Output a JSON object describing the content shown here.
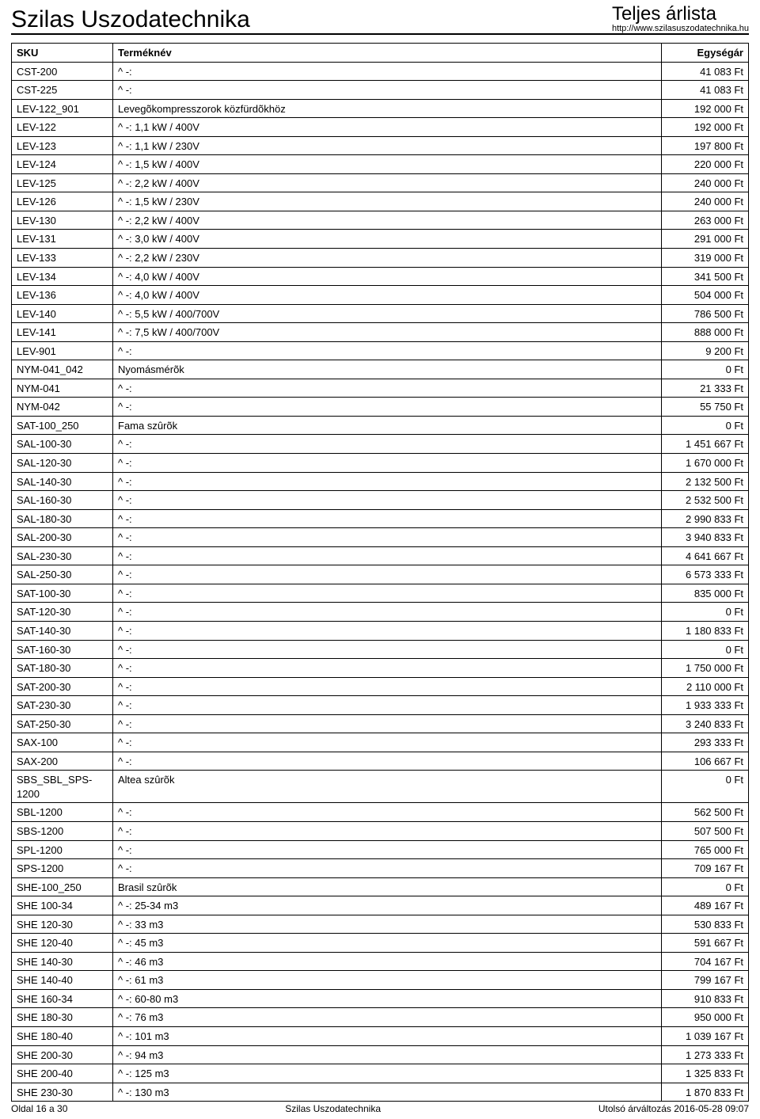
{
  "header": {
    "company": "Szilas Uszodatechnika",
    "pricelist_title": "Teljes árlista",
    "site_url": "http://www.szilasuszodatechnika.hu"
  },
  "columns": {
    "sku": "SKU",
    "name": "Terméknév",
    "price": "Egységár"
  },
  "rows": [
    {
      "sku": "CST-200",
      "name": "^ -:",
      "price": "41 083 Ft"
    },
    {
      "sku": "CST-225",
      "name": "^ -:",
      "price": "41 083 Ft"
    },
    {
      "sku": "LEV-122_901",
      "name": "Levegõkompresszorok közfürdõkhöz",
      "price": "192 000 Ft"
    },
    {
      "sku": "LEV-122",
      "name": "^ -: 1,1 kW / 400V",
      "price": "192 000 Ft"
    },
    {
      "sku": "LEV-123",
      "name": "^ -: 1,1 kW / 230V",
      "price": "197 800 Ft"
    },
    {
      "sku": "LEV-124",
      "name": "^ -: 1,5 kW / 400V",
      "price": "220 000 Ft"
    },
    {
      "sku": "LEV-125",
      "name": "^ -: 2,2 kW / 400V",
      "price": "240 000 Ft"
    },
    {
      "sku": "LEV-126",
      "name": "^ -: 1,5 kW / 230V",
      "price": "240 000 Ft"
    },
    {
      "sku": "LEV-130",
      "name": "^ -: 2,2 kW / 400V",
      "price": "263 000 Ft"
    },
    {
      "sku": "LEV-131",
      "name": "^ -: 3,0 kW / 400V",
      "price": "291 000 Ft"
    },
    {
      "sku": "LEV-133",
      "name": "^ -: 2,2 kW / 230V",
      "price": "319 000 Ft"
    },
    {
      "sku": "LEV-134",
      "name": "^ -: 4,0 kW / 400V",
      "price": "341 500 Ft"
    },
    {
      "sku": "LEV-136",
      "name": "^ -: 4,0 kW / 400V",
      "price": "504 000 Ft"
    },
    {
      "sku": "LEV-140",
      "name": "^ -: 5,5 kW / 400/700V",
      "price": "786 500 Ft"
    },
    {
      "sku": "LEV-141",
      "name": "^ -: 7,5 kW / 400/700V",
      "price": "888 000 Ft"
    },
    {
      "sku": "LEV-901",
      "name": "^ -:",
      "price": "9 200 Ft"
    },
    {
      "sku": "NYM-041_042",
      "name": "Nyomásmérõk",
      "price": "0 Ft"
    },
    {
      "sku": "NYM-041",
      "name": "^ -:",
      "price": "21 333 Ft"
    },
    {
      "sku": "NYM-042",
      "name": "^ -:",
      "price": "55 750 Ft"
    },
    {
      "sku": "SAT-100_250",
      "name": "Fama szûrõk",
      "price": "0 Ft"
    },
    {
      "sku": "SAL-100-30",
      "name": "^ -:",
      "price": "1 451 667 Ft"
    },
    {
      "sku": "SAL-120-30",
      "name": "^ -:",
      "price": "1 670 000 Ft"
    },
    {
      "sku": "SAL-140-30",
      "name": "^ -:",
      "price": "2 132 500 Ft"
    },
    {
      "sku": "SAL-160-30",
      "name": "^ -:",
      "price": "2 532 500 Ft"
    },
    {
      "sku": "SAL-180-30",
      "name": "^ -:",
      "price": "2 990 833 Ft"
    },
    {
      "sku": "SAL-200-30",
      "name": "^ -:",
      "price": "3 940 833 Ft"
    },
    {
      "sku": "SAL-230-30",
      "name": "^ -:",
      "price": "4 641 667 Ft"
    },
    {
      "sku": "SAL-250-30",
      "name": "^ -:",
      "price": "6 573 333 Ft"
    },
    {
      "sku": "SAT-100-30",
      "name": "^ -:",
      "price": "835 000 Ft"
    },
    {
      "sku": "SAT-120-30",
      "name": "^ -:",
      "price": "0 Ft"
    },
    {
      "sku": "SAT-140-30",
      "name": "^ -:",
      "price": "1 180 833 Ft"
    },
    {
      "sku": "SAT-160-30",
      "name": "^ -:",
      "price": "0 Ft"
    },
    {
      "sku": "SAT-180-30",
      "name": "^ -:",
      "price": "1 750 000 Ft"
    },
    {
      "sku": "SAT-200-30",
      "name": "^ -:",
      "price": "2 110 000 Ft"
    },
    {
      "sku": "SAT-230-30",
      "name": "^ -:",
      "price": "1 933 333 Ft"
    },
    {
      "sku": "SAT-250-30",
      "name": "^ -:",
      "price": "3 240 833 Ft"
    },
    {
      "sku": "SAX-100",
      "name": "^ -:",
      "price": "293 333 Ft"
    },
    {
      "sku": "SAX-200",
      "name": "^ -:",
      "price": "106 667 Ft"
    },
    {
      "sku": "SBS_SBL_SPS-1200",
      "name": "Altea szûrõk",
      "price": "0 Ft"
    },
    {
      "sku": "SBL-1200",
      "name": "^ -:",
      "price": "562 500 Ft"
    },
    {
      "sku": "SBS-1200",
      "name": "^ -:",
      "price": "507 500 Ft"
    },
    {
      "sku": "SPL-1200",
      "name": "^ -:",
      "price": "765 000 Ft"
    },
    {
      "sku": "SPS-1200",
      "name": "^ -:",
      "price": "709 167 Ft"
    },
    {
      "sku": "SHE-100_250",
      "name": "Brasil szûrõk",
      "price": "0 Ft"
    },
    {
      "sku": "SHE 100-34",
      "name": "^ -: 25-34 m3",
      "price": "489 167 Ft"
    },
    {
      "sku": "SHE 120-30",
      "name": "^ -: 33 m3",
      "price": "530 833 Ft"
    },
    {
      "sku": "SHE 120-40",
      "name": "^ -: 45 m3",
      "price": "591 667 Ft"
    },
    {
      "sku": "SHE 140-30",
      "name": "^ -: 46 m3",
      "price": "704 167 Ft"
    },
    {
      "sku": "SHE 140-40",
      "name": "^ -: 61 m3",
      "price": "799 167 Ft"
    },
    {
      "sku": "SHE 160-34",
      "name": "^ -: 60-80 m3",
      "price": "910 833 Ft"
    },
    {
      "sku": "SHE 180-30",
      "name": "^ -: 76 m3",
      "price": "950 000 Ft"
    },
    {
      "sku": "SHE 180-40",
      "name": "^ -: 101 m3",
      "price": "1 039 167 Ft"
    },
    {
      "sku": "SHE 200-30",
      "name": "^ -: 94 m3",
      "price": "1 273 333 Ft"
    },
    {
      "sku": "SHE 200-40",
      "name": "^ -: 125 m3",
      "price": "1 325 833 Ft"
    },
    {
      "sku": "SHE 230-30",
      "name": "^ -: 130 m3",
      "price": "1 870 833 Ft"
    }
  ],
  "footer": {
    "page": "Oldal 16 a 30",
    "company": "Szilas Uszodatechnika",
    "updated": "Utolsó árváltozás 2016-05-28 09:07"
  }
}
